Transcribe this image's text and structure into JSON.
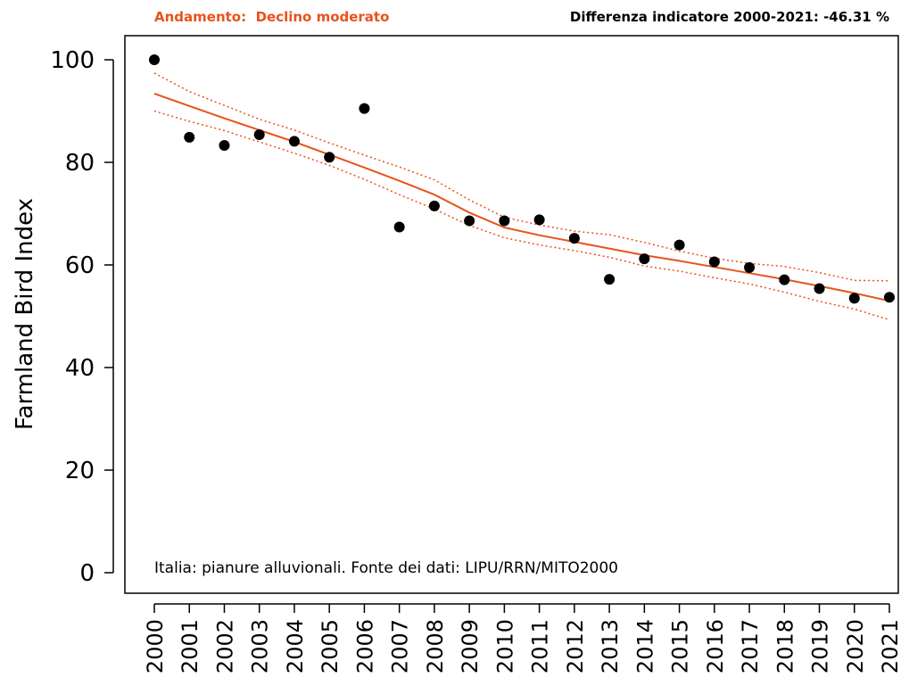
{
  "header": {
    "trend_label": "Andamento:",
    "trend_value": "Declino moderato",
    "difference_label": "Differenza indicatore 2000-2021:",
    "difference_value": "-46.31 %"
  },
  "colors": {
    "trend": "#e8531b",
    "points": "#000000",
    "axis": "#000000"
  },
  "chart_data": {
    "type": "scatter",
    "ylabel": "Farmland Bird Index",
    "annotation": "Italia: pianure alluvionali. Fonte dei dati: LIPU/RRN/MITO2000",
    "ylim": [
      0,
      100
    ],
    "yticks": [
      0,
      20,
      40,
      60,
      80,
      100
    ],
    "x": [
      2000,
      2001,
      2002,
      2003,
      2004,
      2005,
      2006,
      2007,
      2008,
      2009,
      2010,
      2011,
      2012,
      2013,
      2014,
      2015,
      2016,
      2017,
      2018,
      2019,
      2020,
      2021
    ],
    "series": [
      {
        "type": "points",
        "values": [
          100,
          84.9,
          83.3,
          85.4,
          84.1,
          81.0,
          90.5,
          67.4,
          71.5,
          68.6,
          68.6,
          68.8,
          65.2,
          57.2,
          61.2,
          63.9,
          60.6,
          59.5,
          57.1,
          55.4,
          53.5,
          53.7
        ]
      },
      {
        "type": "trend",
        "values": [
          93.4,
          91.0,
          88.6,
          86.3,
          84.0,
          81.5,
          79.0,
          76.4,
          73.7,
          70.2,
          67.3,
          65.8,
          64.5,
          63.2,
          61.9,
          60.8,
          59.6,
          58.4,
          57.2,
          55.9,
          54.5,
          53.0
        ]
      },
      {
        "type": "trend_upper",
        "values": [
          97.4,
          93.8,
          91.1,
          88.4,
          86.3,
          83.8,
          81.4,
          79.1,
          76.6,
          72.7,
          69.3,
          67.8,
          66.6,
          65.9,
          64.4,
          62.7,
          61.3,
          60.3,
          59.7,
          58.5,
          57.0,
          56.9
        ]
      },
      {
        "type": "trend_lower",
        "values": [
          90.0,
          88.0,
          86.2,
          84.0,
          81.8,
          79.4,
          76.7,
          73.7,
          70.9,
          67.7,
          65.3,
          63.9,
          62.8,
          61.5,
          59.8,
          58.8,
          57.5,
          56.3,
          54.7,
          52.9,
          51.4,
          49.3
        ]
      }
    ]
  }
}
